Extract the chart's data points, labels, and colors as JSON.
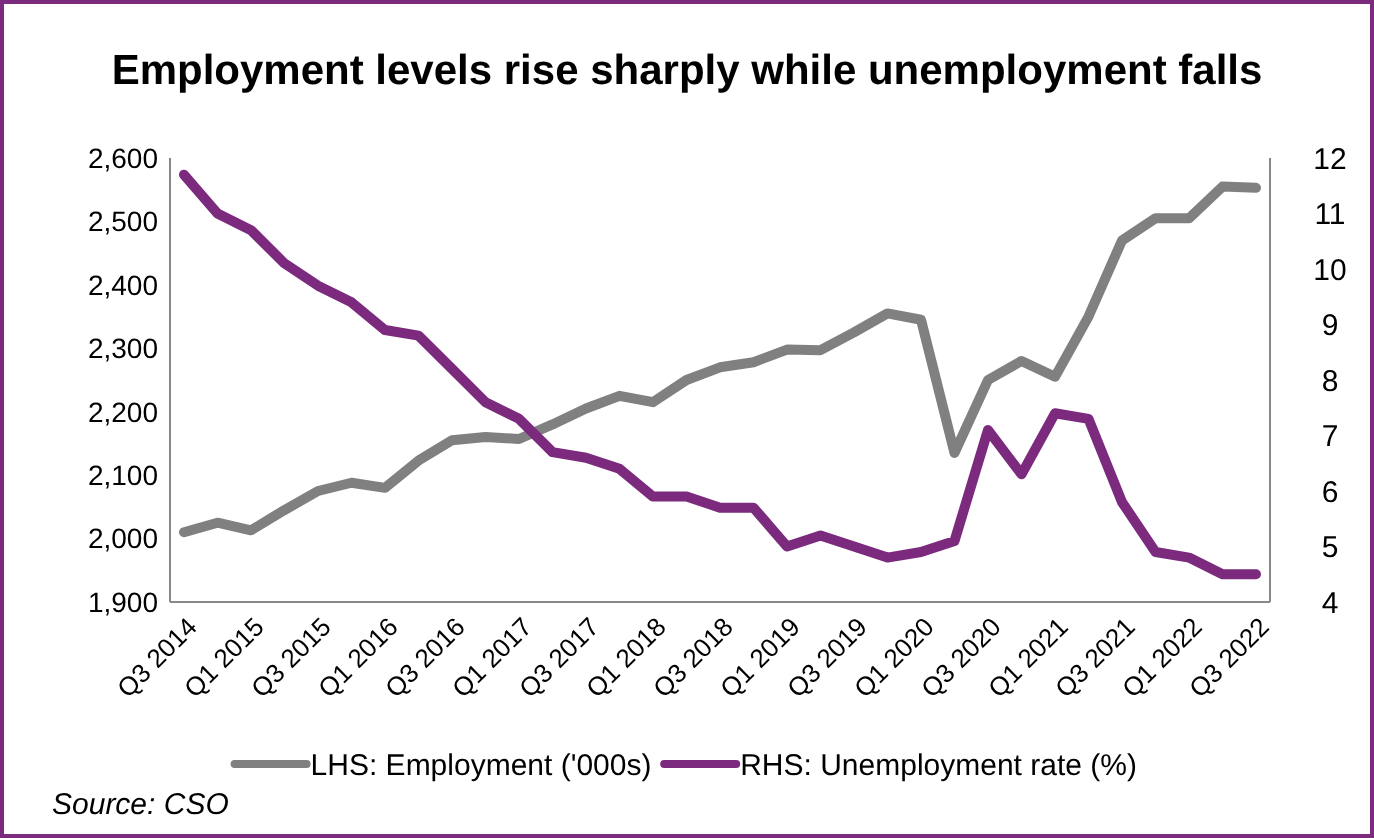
{
  "chart_data": {
    "type": "line",
    "title": "Employment levels rise sharply while unemployment falls",
    "categories": [
      "Q3 2014",
      null,
      "Q1 2015",
      null,
      "Q3 2015",
      null,
      "Q1 2016",
      null,
      "Q3 2016",
      null,
      "Q1 2017",
      null,
      "Q3 2017",
      null,
      "Q1 2018",
      null,
      "Q3 2018",
      null,
      "Q1 2019",
      null,
      "Q3 2019",
      null,
      "Q1 2020",
      null,
      "Q3 2020",
      null,
      "Q1 2021",
      null,
      "Q3 2021",
      null,
      "Q1 2022",
      null,
      "Q3 2022"
    ],
    "series": [
      {
        "name": "LHS: Employment ('000s)",
        "color": "#808080",
        "values": [
          2010,
          2025,
          2013,
          2045,
          2075,
          2088,
          2080,
          2123,
          2155,
          2160,
          2157,
          2180,
          2205,
          2225,
          2215,
          2250,
          2270,
          2278,
          2298,
          2297,
          2325,
          2355,
          2345,
          2135,
          2250,
          2280,
          2255,
          2350,
          2470,
          2505,
          2505,
          2555,
          2553
        ]
      },
      {
        "name": "RHS: Unemployment rate (%)",
        "color": "#7b2a7e",
        "axis": "y2",
        "values": [
          11.7,
          11.0,
          10.7,
          10.1,
          9.7,
          9.4,
          8.9,
          8.8,
          8.2,
          7.6,
          7.3,
          6.7,
          6.6,
          6.4,
          5.9,
          5.9,
          5.7,
          5.7,
          5.0,
          5.2,
          5.0,
          4.8,
          4.9,
          5.1,
          7.1,
          6.3,
          7.4,
          7.3,
          5.8,
          4.9,
          4.8,
          4.5,
          4.5
        ]
      }
    ],
    "ylim": [
      1900,
      2600
    ],
    "yticks": [
      {
        "value": 1900,
        "label": "1,900"
      },
      {
        "value": 2000,
        "label": "2,000"
      },
      {
        "value": 2100,
        "label": "2,100"
      },
      {
        "value": 2200,
        "label": "2,200"
      },
      {
        "value": 2300,
        "label": "2,300"
      },
      {
        "value": 2400,
        "label": "2,400"
      },
      {
        "value": 2500,
        "label": "2,500"
      },
      {
        "value": 2600,
        "label": "2,600"
      }
    ],
    "y2lim": [
      4,
      12
    ],
    "y2ticks": [
      4,
      5,
      6,
      7,
      8,
      9,
      10,
      11,
      12
    ],
    "grid": false,
    "legend": "bottom",
    "line_style": "solid",
    "marker": "none",
    "annotations": [
      "Source: CSO"
    ]
  }
}
